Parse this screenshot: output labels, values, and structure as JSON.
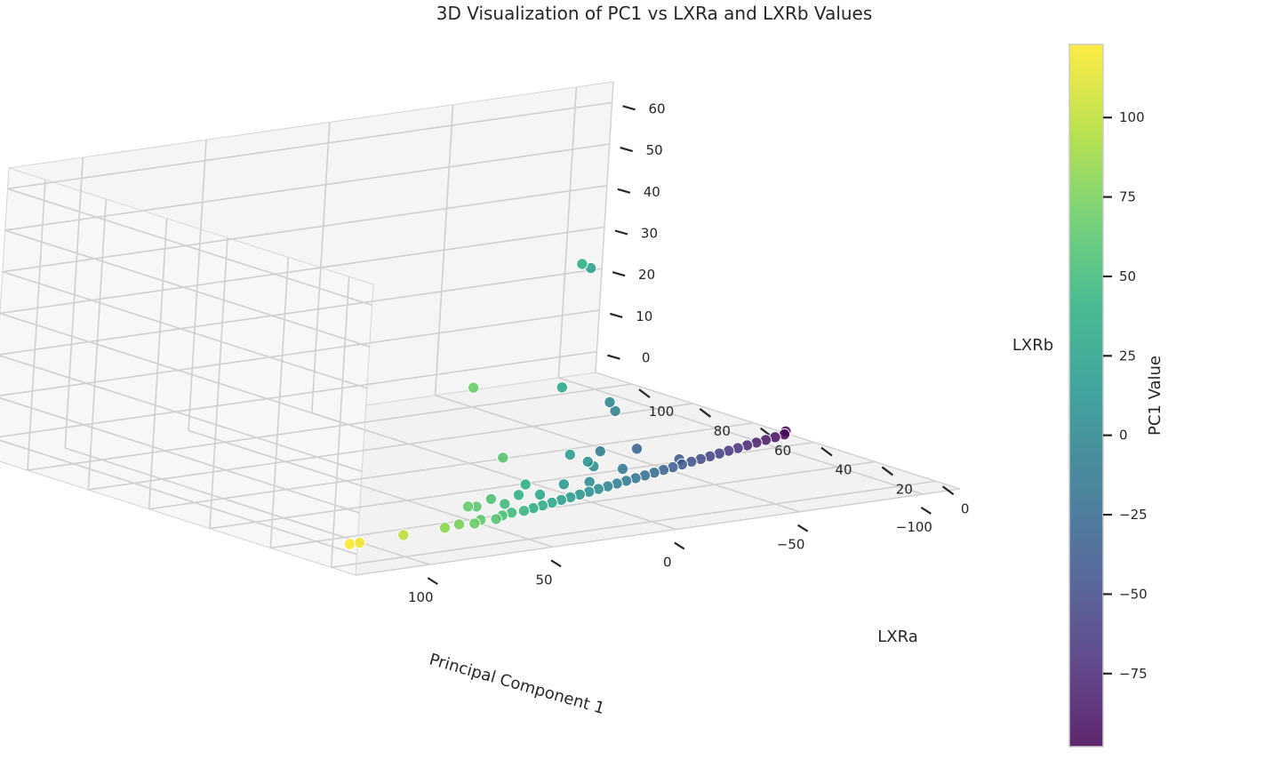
{
  "chart_data": {
    "type": "scatter",
    "projection": "3d",
    "title": "3D Visualization of PC1 vs LXRa and LXRb Values",
    "xlabel": "Principal Component 1",
    "ylabel": "LXRa",
    "zlabel": "LXRb",
    "xlim": [
      -115,
      130
    ],
    "ylim": [
      -8,
      112
    ],
    "zlim": [
      -5,
      65
    ],
    "xticks": [
      100,
      50,
      0,
      -50,
      -100
    ],
    "xtick_labels": [
      "100",
      "50",
      "0",
      "−50",
      "−100"
    ],
    "yticks": [
      0,
      20,
      40,
      60,
      80,
      100
    ],
    "ytick_labels": [
      "0",
      "20",
      "40",
      "60",
      "80",
      "100"
    ],
    "zticks": [
      0,
      10,
      20,
      30,
      40,
      50,
      60
    ],
    "ztick_labels": [
      "0",
      "10",
      "20",
      "30",
      "40",
      "50",
      "60"
    ],
    "grid": true,
    "colormap": "viridis",
    "colorbar": {
      "label": "PC1 Value",
      "range": [
        -98,
        123
      ],
      "ticks": [
        -75,
        -50,
        -25,
        0,
        25,
        50,
        75,
        100
      ],
      "tick_labels": [
        "−75",
        "−50",
        "−25",
        "0",
        "25",
        "50",
        "75",
        "100"
      ]
    },
    "points": [
      {
        "x": 123,
        "y": 0,
        "z": 0
      },
      {
        "x": 119,
        "y": 0,
        "z": 0
      },
      {
        "x": 100,
        "y": 1,
        "z": 0
      },
      {
        "x": 82,
        "y": 2,
        "z": 0
      },
      {
        "x": 75,
        "y": 3,
        "z": 0
      },
      {
        "x": 70,
        "y": 2,
        "z": 0
      },
      {
        "x": 65,
        "y": 4,
        "z": 0
      },
      {
        "x": 60,
        "y": 3,
        "z": 0
      },
      {
        "x": 55,
        "y": 5,
        "z": 0
      },
      {
        "x": 50,
        "y": 6,
        "z": 0
      },
      {
        "x": 45,
        "y": 6,
        "z": 0
      },
      {
        "x": 40,
        "y": 7,
        "z": 0
      },
      {
        "x": 35,
        "y": 8,
        "z": 0
      },
      {
        "x": 30,
        "y": 9,
        "z": 0
      },
      {
        "x": 25,
        "y": 10,
        "z": 0
      },
      {
        "x": 20,
        "y": 11,
        "z": 0
      },
      {
        "x": 15,
        "y": 12,
        "z": 0
      },
      {
        "x": 10,
        "y": 13,
        "z": 0
      },
      {
        "x": 5,
        "y": 14,
        "z": 0
      },
      {
        "x": 0,
        "y": 15,
        "z": 0
      },
      {
        "x": -5,
        "y": 16,
        "z": 0
      },
      {
        "x": -10,
        "y": 17,
        "z": 0
      },
      {
        "x": -15,
        "y": 18,
        "z": 0
      },
      {
        "x": -20,
        "y": 19,
        "z": 0
      },
      {
        "x": -25,
        "y": 20,
        "z": 0
      },
      {
        "x": -30,
        "y": 21,
        "z": 0
      },
      {
        "x": -35,
        "y": 22,
        "z": 0
      },
      {
        "x": -40,
        "y": 23,
        "z": 0
      },
      {
        "x": -45,
        "y": 24,
        "z": 0
      },
      {
        "x": -50,
        "y": 25,
        "z": 0
      },
      {
        "x": -55,
        "y": 26,
        "z": 0
      },
      {
        "x": -60,
        "y": 27,
        "z": 0
      },
      {
        "x": -65,
        "y": 28,
        "z": 0
      },
      {
        "x": -70,
        "y": 29,
        "z": 0
      },
      {
        "x": -75,
        "y": 30,
        "z": 0
      },
      {
        "x": -80,
        "y": 31,
        "z": 0
      },
      {
        "x": -85,
        "y": 32,
        "z": 0
      },
      {
        "x": -90,
        "y": 33,
        "z": 0
      },
      {
        "x": -95,
        "y": 34,
        "z": 0
      },
      {
        "x": -98,
        "y": 36,
        "z": 0
      },
      {
        "x": 68,
        "y": 6,
        "z": 3
      },
      {
        "x": 62,
        "y": 8,
        "z": 2
      },
      {
        "x": 55,
        "y": 9,
        "z": 3
      },
      {
        "x": 48,
        "y": 10,
        "z": 1
      },
      {
        "x": 40,
        "y": 12,
        "z": 2
      },
      {
        "x": 30,
        "y": 13,
        "z": 1
      },
      {
        "x": 18,
        "y": 15,
        "z": 2
      },
      {
        "x": 5,
        "y": 17,
        "z": 1
      },
      {
        "x": -12,
        "y": 20,
        "z": 2
      },
      {
        "x": -40,
        "y": 24,
        "z": 1
      },
      {
        "x": 35,
        "y": 0,
        "z": 60
      },
      {
        "x": 25,
        "y": 5,
        "z": 57
      },
      {
        "x": 70,
        "y": 5,
        "z": 32
      },
      {
        "x": 30,
        "y": 8,
        "z": 28
      },
      {
        "x": 0,
        "y": 16,
        "z": 20
      },
      {
        "x": -5,
        "y": 18,
        "z": 17
      },
      {
        "x": 60,
        "y": 2,
        "z": 15
      },
      {
        "x": 20,
        "y": 12,
        "z": 10
      },
      {
        "x": 10,
        "y": 14,
        "z": 7
      },
      {
        "x": 5,
        "y": 16,
        "z": 5
      },
      {
        "x": -10,
        "y": 26,
        "z": 5
      },
      {
        "x": -30,
        "y": 30,
        "z": 3
      },
      {
        "x": 40,
        "y": 10,
        "z": 5
      }
    ]
  }
}
